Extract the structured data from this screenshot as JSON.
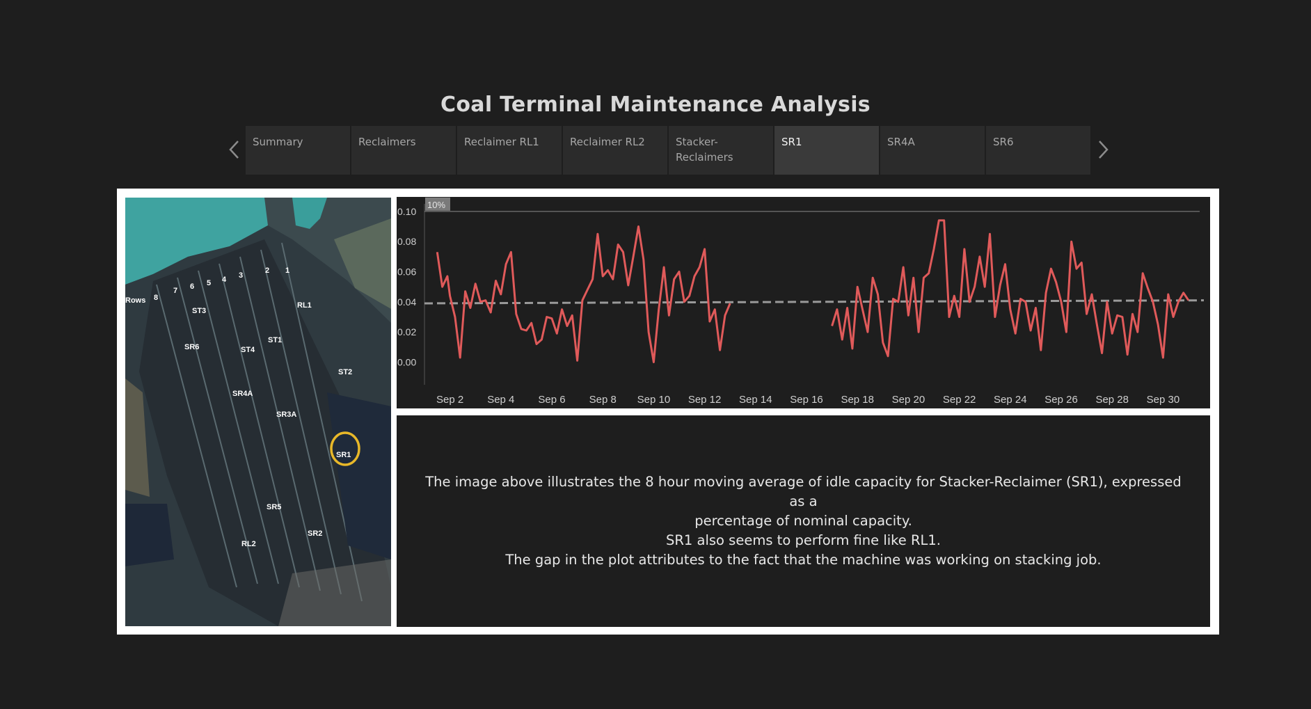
{
  "title": "Coal Terminal Maintenance Analysis",
  "tabs": [
    {
      "label": "Summary",
      "active": false
    },
    {
      "label": "Reclaimers",
      "active": false
    },
    {
      "label": "Reclaimer RL1",
      "active": false
    },
    {
      "label": "Reclaimer RL2",
      "active": false
    },
    {
      "label": "Stacker-Reclaimers",
      "active": false
    },
    {
      "label": "SR1",
      "active": true
    },
    {
      "label": "SR4A",
      "active": false
    },
    {
      "label": "SR6",
      "active": false
    }
  ],
  "nav": {
    "prev_icon": "chevron-left-icon",
    "next_icon": "chevron-right-icon"
  },
  "map": {
    "labels": {
      "rows": "Rows",
      "r8": "8",
      "r7": "7",
      "r6": "6",
      "r5": "5",
      "r4": "4",
      "r3": "3",
      "r2": "2",
      "r1": "1",
      "st3": "ST3",
      "rl1": "RL1",
      "sr6": "SR6",
      "st4": "ST4",
      "st1": "ST1",
      "st2": "ST2",
      "sr4a": "SR4A",
      "sr3a": "SR3A",
      "sr1": "SR1",
      "sr5": "SR5",
      "sr2": "SR2",
      "rl2": "RL2"
    },
    "highlight_color": "#e8b829"
  },
  "description": {
    "line1": "The image above illustrates the 8 hour moving average of idle capacity for Stacker-Reclaimer (SR1), expressed as a",
    "line2": "percentage of nominal capacity.",
    "line3": "SR1 also seems to perform fine like RL1.",
    "line4": "The gap in the plot attributes to the fact that the machine was working on stacking job."
  },
  "chart_data": {
    "type": "line",
    "ylabel": "",
    "xlabel": "",
    "ylim": [
      -0.015,
      0.105
    ],
    "xlim": [
      1.0,
      31.6
    ],
    "y_ticks": [
      "0.10",
      "0.08",
      "0.06",
      "0.04",
      "0.02",
      "0.00"
    ],
    "x_ticks": [
      "Sep 2",
      "Sep 4",
      "Sep 6",
      "Sep 8",
      "Sep 10",
      "Sep 12",
      "Sep 14",
      "Sep 16",
      "Sep 18",
      "Sep 20",
      "Sep 22",
      "Sep 24",
      "Sep 26",
      "Sep 28",
      "Sep 30"
    ],
    "reference_line": {
      "label": "10%",
      "value": 0.1
    },
    "trend_line": {
      "x": [
        1.0,
        31.6
      ],
      "y": [
        0.039,
        0.041
      ]
    },
    "line_color": "#e05a5a",
    "trend_color": "#9a9a9a",
    "series": [
      {
        "segments": [
          {
            "x": [
              1.5,
              1.7,
              1.9,
              2.0,
              2.2,
              2.4,
              2.6,
              2.8,
              3.0,
              3.2,
              3.4,
              3.6,
              3.8,
              4.0,
              4.2,
              4.4,
              4.6,
              4.8,
              5.0,
              5.2,
              5.4,
              5.6,
              5.8,
              6.0,
              6.2,
              6.4,
              6.6,
              6.8,
              7.0,
              7.2,
              7.4,
              7.6,
              7.8,
              8.0,
              8.2,
              8.4,
              8.6,
              8.8,
              9.0,
              9.2,
              9.4,
              9.6,
              9.8,
              10.0,
              10.2,
              10.4,
              10.6,
              10.8,
              11.0,
              11.2,
              11.4,
              11.6,
              11.8,
              12.0,
              12.2,
              12.4,
              12.6,
              12.8,
              13.0
            ],
            "y": [
              0.073,
              0.05,
              0.057,
              0.044,
              0.03,
              0.003,
              0.047,
              0.036,
              0.052,
              0.04,
              0.041,
              0.033,
              0.054,
              0.045,
              0.065,
              0.073,
              0.032,
              0.022,
              0.021,
              0.026,
              0.012,
              0.015,
              0.03,
              0.029,
              0.019,
              0.035,
              0.024,
              0.031,
              0.001,
              0.041,
              0.048,
              0.055,
              0.085,
              0.057,
              0.061,
              0.055,
              0.078,
              0.073,
              0.051,
              0.07,
              0.09,
              0.068,
              0.02,
              0.0,
              0.035,
              0.063,
              0.031,
              0.055,
              0.06,
              0.04,
              0.044,
              0.057,
              0.063,
              0.075,
              0.027,
              0.035,
              0.008,
              0.031,
              0.039
            ]
          }
        ]
      },
      {
        "segments": [
          {
            "x": [
              17.0,
              17.2,
              17.4,
              17.6,
              17.8,
              18.0,
              18.2,
              18.4,
              18.6,
              18.8,
              19.0,
              19.2,
              19.4,
              19.6,
              19.8,
              20.0,
              20.2,
              20.4,
              20.6,
              20.8,
              21.0,
              21.2,
              21.4,
              21.6,
              21.8,
              22.0,
              22.2,
              22.4,
              22.6,
              22.8,
              23.0,
              23.2,
              23.4,
              23.6,
              23.8,
              24.0,
              24.2,
              24.4,
              24.6,
              24.8,
              25.0,
              25.2,
              25.4,
              25.6,
              25.8,
              26.0,
              26.2,
              26.4,
              26.6,
              26.8,
              27.0,
              27.2,
              27.4,
              27.6,
              27.8,
              28.0,
              28.2,
              28.4,
              28.6,
              28.8,
              29.0,
              29.2,
              29.4,
              29.6,
              29.8,
              30.0,
              30.2,
              30.4,
              30.6,
              30.8,
              31.0
            ],
            "y": [
              0.024,
              0.035,
              0.015,
              0.036,
              0.009,
              0.05,
              0.035,
              0.02,
              0.056,
              0.045,
              0.013,
              0.004,
              0.042,
              0.04,
              0.063,
              0.031,
              0.056,
              0.02,
              0.056,
              0.059,
              0.075,
              0.094,
              0.094,
              0.03,
              0.044,
              0.03,
              0.075,
              0.04,
              0.05,
              0.07,
              0.05,
              0.085,
              0.03,
              0.051,
              0.065,
              0.035,
              0.019,
              0.042,
              0.04,
              0.021,
              0.036,
              0.008,
              0.046,
              0.062,
              0.053,
              0.04,
              0.02,
              0.08,
              0.062,
              0.066,
              0.032,
              0.045,
              0.025,
              0.006,
              0.04,
              0.019,
              0.031,
              0.03,
              0.005,
              0.032,
              0.02,
              0.059,
              0.049,
              0.04,
              0.025,
              0.003,
              0.045,
              0.03,
              0.04,
              0.046,
              0.041
            ]
          }
        ]
      }
    ]
  }
}
